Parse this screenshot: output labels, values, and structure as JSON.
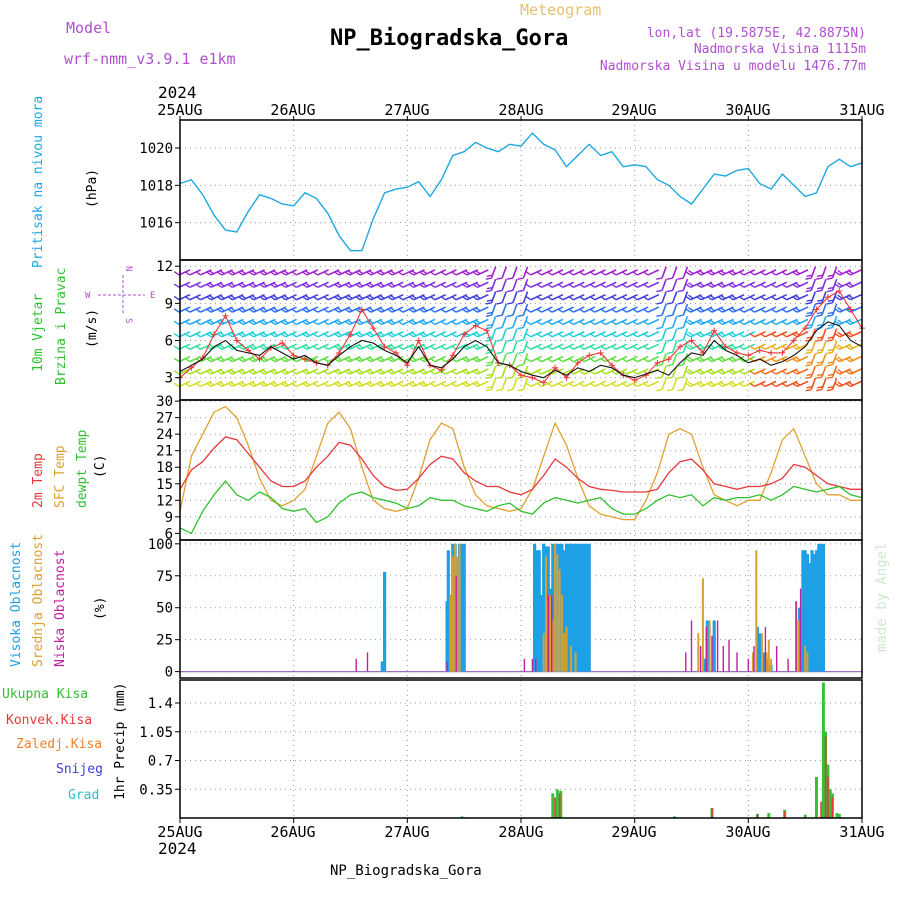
{
  "header": {
    "model_label": "Model",
    "model_name": "wrf-nmm_v3.9.1 e1km",
    "product": "Meteogram",
    "station": "NP_Biogradska_Gora",
    "lonlat": "lon,lat (19.5875E, 42.8875N)",
    "elevation": "Nadmorska Visina 1115m",
    "model_elevation": "Nadmorska Visina u modelu 1476.77m",
    "year": "2024",
    "footer_station": "NP_Biogradska_Gora",
    "credit": "made by Angel"
  },
  "colors": {
    "pressure": "#1ea8e0",
    "temp2m": "#e8383c",
    "sfc": "#e0a030",
    "dewpt": "#30c030",
    "high_cloud": "#1ea0e6",
    "mid_cloud": "#d8a030",
    "low_cloud": "#c020a0",
    "total_precip": "#38c038",
    "conv_precip": "#e83838",
    "frz_precip": "#f08030",
    "snow": "#4040e0",
    "hail": "#30c0c0",
    "violet_text": "#b050d0"
  },
  "x_axis": {
    "dates": [
      "25AUG",
      "26AUG",
      "27AUG",
      "28AUG",
      "29AUG",
      "30AUG",
      "31AUG"
    ],
    "year": "2024"
  },
  "panel_labels": {
    "pressure": {
      "title": "Pritisak na nivou mora",
      "unit": "(hPa)"
    },
    "wind": {
      "title1": "10m Vjetar",
      "title2": "Brzina i Pravac",
      "unit": "(m/s)",
      "compass_n": "N",
      "compass_s": "S",
      "compass_w": "W",
      "compass_e": "E"
    },
    "temp": {
      "l1": "2m Temp",
      "l2": "SFC Temp",
      "l3": "dewpt Temp",
      "unit": "(C)"
    },
    "cloud": {
      "l1": "Visoka Oblacnost",
      "l2": "Srednja Oblacnost",
      "l3": "Niska Oblacnost",
      "unit": "(%)"
    },
    "precip": {
      "l1": "Ukupna Kisa",
      "l2": "Konvek.Kisa",
      "l3": "Zaledj.Kisa",
      "l4": "Snijeg",
      "l5": "Grad",
      "unit": "1hr Precip (mm)"
    }
  },
  "chart_data": [
    {
      "type": "line",
      "ylabel": "(hPa)",
      "ylim": [
        1014.0,
        1021.5
      ],
      "yticks": [
        1016,
        1018,
        1020
      ],
      "x_days": [
        0,
        0.1,
        0.2,
        0.3,
        0.4,
        0.5,
        0.6,
        0.7,
        0.8,
        0.9,
        1.0,
        1.1,
        1.2,
        1.3,
        1.4,
        1.5,
        1.6,
        1.7,
        1.8,
        1.9,
        2.0,
        2.1,
        2.2,
        2.3,
        2.4,
        2.5,
        2.6,
        2.7,
        2.8,
        2.9,
        3.0,
        3.1,
        3.2,
        3.3,
        3.4,
        3.5,
        3.6,
        3.7,
        3.8,
        3.9,
        4.0,
        4.1,
        4.2,
        4.3,
        4.4,
        4.5,
        4.6,
        4.7,
        4.8,
        4.9,
        5.0,
        5.1,
        5.2,
        5.3,
        5.4,
        5.5,
        5.6,
        5.7,
        5.8,
        5.9,
        6.0
      ],
      "series": [
        {
          "values": [
            1018.1,
            1018.3,
            1017.5,
            1016.4,
            1015.6,
            1015.5,
            1016.6,
            1017.5,
            1017.3,
            1017.0,
            1016.9,
            1017.6,
            1017.3,
            1016.5,
            1015.3,
            1014.5,
            1014.5,
            1016.2,
            1017.6,
            1017.8,
            1017.9,
            1018.2,
            1017.4,
            1018.3,
            1019.6,
            1019.8,
            1020.3,
            1020.0,
            1019.8,
            1020.2,
            1020.1,
            1020.8,
            1020.2,
            1019.9,
            1019.0,
            1019.6,
            1020.2,
            1019.6,
            1019.8,
            1019.0,
            1019.1,
            1019.0,
            1018.3,
            1018.0,
            1017.4,
            1017.0,
            1017.8,
            1018.6,
            1018.5,
            1018.8,
            1018.9,
            1018.1,
            1017.8,
            1018.6,
            1018.0,
            1017.4,
            1017.6,
            1019.0,
            1019.4,
            1019.0,
            1019.2
          ]
        }
      ]
    },
    {
      "type": "line",
      "ylabel": "(m/s)",
      "ylim": [
        1.2,
        12.5
      ],
      "yticks": [
        3,
        6,
        9,
        12
      ],
      "x_days": [
        0,
        0.1,
        0.2,
        0.3,
        0.4,
        0.5,
        0.6,
        0.7,
        0.8,
        0.9,
        1.0,
        1.1,
        1.2,
        1.3,
        1.4,
        1.5,
        1.6,
        1.7,
        1.8,
        1.9,
        2.0,
        2.1,
        2.2,
        2.3,
        2.4,
        2.5,
        2.6,
        2.7,
        2.8,
        2.9,
        3.0,
        3.1,
        3.2,
        3.3,
        3.4,
        3.5,
        3.6,
        3.7,
        3.8,
        3.9,
        4.0,
        4.1,
        4.2,
        4.3,
        4.4,
        4.5,
        4.6,
        4.7,
        4.8,
        4.9,
        5.0,
        5.1,
        5.2,
        5.3,
        5.4,
        5.5,
        5.6,
        5.7,
        5.8,
        5.9,
        6.0
      ],
      "series": [
        {
          "name": "wind_speed",
          "values": [
            3.5,
            4.0,
            4.5,
            5.5,
            6.0,
            5.2,
            5.0,
            4.8,
            5.5,
            5.0,
            4.5,
            4.8,
            4.2,
            4.0,
            4.8,
            5.5,
            6.0,
            5.8,
            5.2,
            4.8,
            4.2,
            5.5,
            4.0,
            3.8,
            4.5,
            5.5,
            6.0,
            5.5,
            4.2,
            4.0,
            3.5,
            3.2,
            3.0,
            3.6,
            3.2,
            3.8,
            3.5,
            4.0,
            3.8,
            3.2,
            3.0,
            3.3,
            3.6,
            3.2,
            4.2,
            5.0,
            4.8,
            6.0,
            5.2,
            4.8,
            4.2,
            4.5,
            4.0,
            4.3,
            4.8,
            5.5,
            6.8,
            7.5,
            7.2,
            6.0,
            5.5
          ]
        },
        {
          "name": "wind_gust",
          "values": [
            3.0,
            3.8,
            4.6,
            6.5,
            8.0,
            6.0,
            5.2,
            4.5,
            5.4,
            5.8,
            4.8,
            4.5,
            4.2,
            4.0,
            5.0,
            6.5,
            8.5,
            7.0,
            5.5,
            5.0,
            4.0,
            6.0,
            4.0,
            3.6,
            4.8,
            6.5,
            7.2,
            6.8,
            4.2,
            4.0,
            3.2,
            3.0,
            2.6,
            3.8,
            3.0,
            4.2,
            4.8,
            5.0,
            4.0,
            3.2,
            2.8,
            3.2,
            4.2,
            4.5,
            5.5,
            6.0,
            5.0,
            6.8,
            5.5,
            5.0,
            4.8,
            5.2,
            5.0,
            5.0,
            6.0,
            7.0,
            8.5,
            9.5,
            10.0,
            8.5,
            7.0
          ]
        }
      ]
    },
    {
      "type": "line",
      "ylabel": "(C)",
      "ylim": [
        4.8,
        30.2
      ],
      "yticks": [
        6,
        9,
        12,
        15,
        18,
        21,
        24,
        27,
        30
      ],
      "x_days": [
        0,
        0.1,
        0.2,
        0.3,
        0.4,
        0.5,
        0.6,
        0.7,
        0.8,
        0.9,
        1.0,
        1.1,
        1.2,
        1.3,
        1.4,
        1.5,
        1.6,
        1.7,
        1.8,
        1.9,
        2.0,
        2.1,
        2.2,
        2.3,
        2.4,
        2.5,
        2.6,
        2.7,
        2.8,
        2.9,
        3.0,
        3.1,
        3.2,
        3.3,
        3.4,
        3.5,
        3.6,
        3.7,
        3.8,
        3.9,
        4.0,
        4.1,
        4.2,
        4.3,
        4.4,
        4.5,
        4.6,
        4.7,
        4.8,
        4.9,
        5.0,
        5.1,
        5.2,
        5.3,
        5.4,
        5.5,
        5.6,
        5.7,
        5.8,
        5.9,
        6.0
      ],
      "series": [
        {
          "name": "2m Temp",
          "values": [
            14.0,
            17.5,
            19.0,
            21.5,
            23.5,
            23.0,
            20.5,
            18.0,
            15.5,
            14.5,
            14.5,
            15.5,
            18.0,
            20.0,
            22.5,
            22.0,
            19.5,
            16.5,
            14.5,
            13.8,
            14.0,
            16.0,
            18.5,
            20.0,
            19.5,
            17.0,
            15.5,
            14.5,
            14.5,
            13.5,
            13.0,
            14.0,
            16.5,
            19.5,
            18.0,
            16.0,
            14.5,
            14.0,
            13.8,
            13.5,
            13.5,
            13.5,
            14.0,
            17.0,
            19.0,
            19.5,
            17.5,
            15.0,
            14.5,
            14.0,
            14.5,
            14.5,
            15.0,
            16.0,
            18.5,
            18.0,
            16.5,
            15.0,
            14.5,
            14.0,
            14.0
          ]
        },
        {
          "name": "SFC Temp",
          "values": [
            10.0,
            20.0,
            24.0,
            28.0,
            29.0,
            27.0,
            22.0,
            16.0,
            12.0,
            11.0,
            12.0,
            14.0,
            20.0,
            26.0,
            28.0,
            25.0,
            18.0,
            12.0,
            10.5,
            10.0,
            10.5,
            16.0,
            23.0,
            26.0,
            25.0,
            18.0,
            13.0,
            11.0,
            10.5,
            10.0,
            10.5,
            14.0,
            20.0,
            26.0,
            22.0,
            16.0,
            11.0,
            9.5,
            9.0,
            8.5,
            8.5,
            12.0,
            17.0,
            24.0,
            25.0,
            24.0,
            18.0,
            13.0,
            12.0,
            11.0,
            12.0,
            12.0,
            17.0,
            23.0,
            25.0,
            20.0,
            15.0,
            13.0,
            13.0,
            12.0,
            12.0
          ]
        },
        {
          "name": "dewpt Temp",
          "values": [
            7.0,
            6.0,
            10.0,
            13.0,
            15.5,
            13.0,
            12.0,
            13.5,
            12.5,
            10.5,
            10.0,
            10.5,
            8.0,
            9.0,
            11.5,
            13.0,
            13.5,
            12.5,
            12.0,
            11.5,
            10.5,
            11.0,
            12.5,
            12.0,
            12.0,
            11.0,
            10.5,
            10.0,
            11.0,
            11.5,
            10.0,
            9.5,
            11.5,
            12.5,
            12.0,
            11.5,
            12.0,
            12.5,
            10.5,
            9.5,
            9.5,
            10.5,
            12.0,
            13.0,
            12.5,
            13.0,
            11.0,
            12.5,
            12.0,
            12.5,
            12.5,
            13.0,
            12.0,
            13.0,
            14.5,
            14.0,
            13.5,
            14.0,
            14.5,
            13.0,
            12.5
          ]
        }
      ]
    },
    {
      "type": "bar",
      "ylabel": "(%)",
      "ylim": [
        -5,
        103
      ],
      "yticks": [
        0,
        25,
        50,
        75,
        100
      ],
      "series": [
        {
          "name": "Visoka Oblacnost",
          "x_days": [
            1.78,
            1.8,
            2.35,
            2.36,
            2.38,
            2.4,
            2.42,
            2.44,
            2.46,
            2.48,
            2.5,
            3.12,
            3.14,
            3.16,
            3.18,
            3.2,
            3.22,
            3.24,
            3.26,
            3.28,
            3.3,
            3.32,
            3.34,
            3.36,
            3.38,
            3.4,
            3.42,
            3.44,
            3.46,
            3.48,
            3.5,
            3.52,
            3.54,
            3.56,
            3.58,
            3.6,
            4.62,
            4.64,
            4.7,
            5.08,
            5.1,
            5.14,
            5.16,
            5.2,
            5.45,
            5.48,
            5.5,
            5.52,
            5.54,
            5.56,
            5.58,
            5.6,
            5.62,
            5.64,
            5.66
          ],
          "values": [
            8,
            78,
            55,
            95,
            60,
            100,
            100,
            80,
            100,
            100,
            100,
            100,
            95,
            95,
            60,
            100,
            98,
            98,
            65,
            100,
            100,
            100,
            100,
            100,
            95,
            100,
            100,
            100,
            100,
            100,
            100,
            100,
            100,
            100,
            100,
            100,
            10,
            40,
            40,
            35,
            30,
            15,
            10,
            5,
            50,
            95,
            95,
            92,
            85,
            95,
            92,
            95,
            100,
            100,
            100
          ]
        },
        {
          "name": "Srednja Oblacnost",
          "x_days": [
            2.38,
            2.4,
            2.42,
            2.44,
            2.46,
            3.2,
            3.22,
            3.24,
            3.26,
            3.28,
            3.3,
            3.32,
            3.34,
            3.36,
            3.38,
            3.4,
            3.44,
            3.48,
            4.56,
            4.6,
            4.66,
            5.04,
            5.07,
            5.12,
            5.16,
            5.18,
            5.2,
            5.42,
            5.44,
            5.5,
            5.52
          ],
          "values": [
            60,
            90,
            100,
            90,
            100,
            30,
            90,
            55,
            60,
            40,
            100,
            92,
            80,
            60,
            30,
            35,
            20,
            15,
            30,
            73,
            40,
            15,
            95,
            30,
            15,
            25,
            10,
            55,
            40,
            20,
            15
          ]
        },
        {
          "name": "Niska Oblacnost",
          "x_days": [
            1.55,
            1.65,
            2.35,
            2.43,
            3.03,
            3.1,
            3.13,
            3.24,
            3.27,
            4.45,
            4.5,
            4.58,
            4.63,
            4.68,
            4.73,
            4.78,
            4.83,
            4.9,
            5.0,
            5.05,
            5.15,
            5.25,
            5.35,
            5.42,
            5.46
          ],
          "values": [
            10,
            15,
            8,
            75,
            10,
            10,
            10,
            60,
            60,
            15,
            40,
            20,
            35,
            28,
            40,
            20,
            25,
            15,
            10,
            20,
            35,
            20,
            10,
            55,
            65
          ]
        }
      ]
    },
    {
      "type": "bar",
      "ylabel": "1hr Precip (mm)",
      "ylim": [
        0,
        1.68
      ],
      "yticks": [
        0.35,
        0.7,
        1.05,
        1.4
      ],
      "series": [
        {
          "name": "Ukupna Kisa",
          "x_days": [
            2.48,
            2.52,
            3.28,
            3.32,
            3.35,
            4.35,
            4.68,
            5.08,
            5.18,
            5.32,
            5.5,
            5.6,
            5.66,
            5.68,
            5.7,
            5.72,
            5.74,
            5.78,
            5.8
          ],
          "values": [
            0.02,
            0.01,
            0.3,
            0.35,
            0.33,
            0.02,
            0.12,
            0.05,
            0.06,
            0.1,
            0.04,
            0.5,
            1.65,
            1.05,
            0.65,
            0.35,
            0.3,
            0.06,
            0.05
          ]
        },
        {
          "name": "Konvek.Kisa",
          "x_days": [
            3.3,
            3.34,
            4.68,
            5.08,
            5.32,
            5.64,
            5.68,
            5.7,
            5.74
          ],
          "values": [
            0.25,
            0.3,
            0.12,
            0.05,
            0.08,
            0.2,
            1.0,
            0.5,
            0.25
          ]
        }
      ]
    }
  ]
}
